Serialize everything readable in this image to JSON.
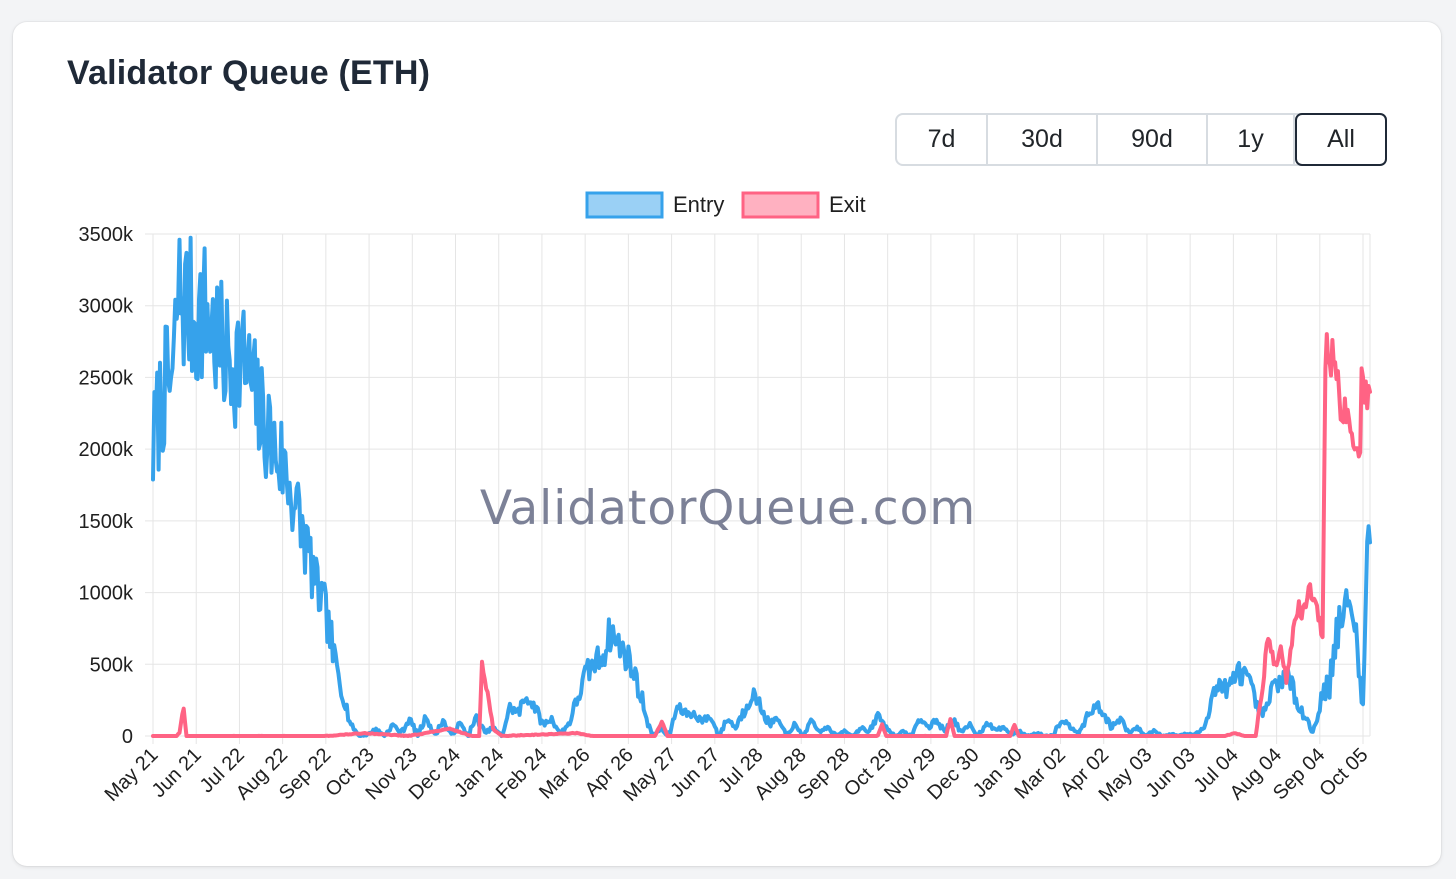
{
  "card": {
    "title": "Validator Queue (ETH)"
  },
  "range_buttons": [
    {
      "label": "7d",
      "active": false
    },
    {
      "label": "30d",
      "active": false
    },
    {
      "label": "90d",
      "active": false
    },
    {
      "label": "1y",
      "active": false
    },
    {
      "label": "All",
      "active": true
    }
  ],
  "watermark": "ValidatorQueue.com",
  "colors": {
    "entry": "#36a2eb",
    "entry_fill": "#9ad0f5",
    "exit": "#ff6384",
    "exit_fill": "#ffb1c1",
    "grid": "#e5e5e5"
  },
  "chart_data": {
    "type": "line",
    "title": "",
    "xlabel": "",
    "ylabel": "",
    "ylim": [
      0,
      3500000
    ],
    "y_ticks": [
      {
        "value": 0,
        "label": "0"
      },
      {
        "value": 500000,
        "label": "500k"
      },
      {
        "value": 1000000,
        "label": "1000k"
      },
      {
        "value": 1500000,
        "label": "1500k"
      },
      {
        "value": 2000000,
        "label": "2000k"
      },
      {
        "value": 2500000,
        "label": "2500k"
      },
      {
        "value": 3000000,
        "label": "3000k"
      },
      {
        "value": 3500000,
        "label": "3500k"
      }
    ],
    "x_range": [
      "2023-05-21",
      "2025-10-10"
    ],
    "x_ticks": [
      {
        "date": "2023-05-21",
        "label": "May 21"
      },
      {
        "date": "2023-06-21",
        "label": "Jun 21"
      },
      {
        "date": "2023-07-22",
        "label": "Jul 22"
      },
      {
        "date": "2023-08-22",
        "label": "Aug 22"
      },
      {
        "date": "2023-09-22",
        "label": "Sep 22"
      },
      {
        "date": "2023-10-23",
        "label": "Oct 23"
      },
      {
        "date": "2023-11-23",
        "label": "Nov 23"
      },
      {
        "date": "2023-12-24",
        "label": "Dec 24"
      },
      {
        "date": "2024-01-24",
        "label": "Jan 24"
      },
      {
        "date": "2024-02-24",
        "label": "Feb 24"
      },
      {
        "date": "2024-03-26",
        "label": "Mar 26"
      },
      {
        "date": "2024-04-26",
        "label": "Apr 26"
      },
      {
        "date": "2024-05-27",
        "label": "May 27"
      },
      {
        "date": "2024-06-27",
        "label": "Jun 27"
      },
      {
        "date": "2024-07-28",
        "label": "Jul 28"
      },
      {
        "date": "2024-08-28",
        "label": "Aug 28"
      },
      {
        "date": "2024-09-28",
        "label": "Sep 28"
      },
      {
        "date": "2024-10-29",
        "label": "Oct 29"
      },
      {
        "date": "2024-11-29",
        "label": "Nov 29"
      },
      {
        "date": "2024-12-30",
        "label": "Dec 30"
      },
      {
        "date": "2025-01-30",
        "label": "Jan 30"
      },
      {
        "date": "2025-03-02",
        "label": "Mar 02"
      },
      {
        "date": "2025-04-02",
        "label": "Apr 02"
      },
      {
        "date": "2025-05-03",
        "label": "May 03"
      },
      {
        "date": "2025-06-03",
        "label": "Jun 03"
      },
      {
        "date": "2025-07-04",
        "label": "Jul 04"
      },
      {
        "date": "2025-08-04",
        "label": "Aug 04"
      },
      {
        "date": "2025-09-04",
        "label": "Sep 04"
      },
      {
        "date": "2025-10-05",
        "label": "Oct 05"
      }
    ],
    "legend": {
      "position": "top"
    },
    "grid": true,
    "series": [
      {
        "name": "Entry",
        "color": "#36a2eb",
        "points": [
          [
            "2023-05-21",
            2000000
          ],
          [
            "2023-05-25",
            2250000
          ],
          [
            "2023-05-29",
            2420000
          ],
          [
            "2023-06-02",
            2450000
          ],
          [
            "2023-06-05",
            2480000
          ],
          [
            "2023-06-07",
            3000000
          ],
          [
            "2023-06-10",
            3100000
          ],
          [
            "2023-06-13",
            3020000
          ],
          [
            "2023-06-17",
            2960000
          ],
          [
            "2023-06-22",
            2900000
          ],
          [
            "2023-06-26",
            2960000
          ],
          [
            "2023-06-30",
            2900000
          ],
          [
            "2023-07-04",
            2800000
          ],
          [
            "2023-07-08",
            2700000
          ],
          [
            "2023-07-12",
            2640000
          ],
          [
            "2023-07-17",
            2620000
          ],
          [
            "2023-07-22",
            2640000
          ],
          [
            "2023-07-26",
            2580000
          ],
          [
            "2023-08-01",
            2400000
          ],
          [
            "2023-08-06",
            2220000
          ],
          [
            "2023-08-11",
            2150000
          ],
          [
            "2023-08-16",
            2000000
          ],
          [
            "2023-08-22",
            1900000
          ],
          [
            "2023-08-28",
            1720000
          ],
          [
            "2023-09-03",
            1500000
          ],
          [
            "2023-09-09",
            1300000
          ],
          [
            "2023-09-15",
            1050000
          ],
          [
            "2023-09-22",
            850000
          ],
          [
            "2023-09-28",
            550000
          ],
          [
            "2023-10-04",
            300000
          ],
          [
            "2023-10-10",
            80000
          ],
          [
            "2023-10-16",
            0
          ],
          [
            "2023-10-22",
            10000
          ],
          [
            "2023-10-28",
            50000
          ],
          [
            "2023-11-03",
            0
          ],
          [
            "2023-11-09",
            80000
          ],
          [
            "2023-11-15",
            20000
          ],
          [
            "2023-11-21",
            120000
          ],
          [
            "2023-11-27",
            0
          ],
          [
            "2023-12-03",
            140000
          ],
          [
            "2023-12-09",
            0
          ],
          [
            "2023-12-15",
            110000
          ],
          [
            "2023-12-21",
            0
          ],
          [
            "2023-12-27",
            90000
          ],
          [
            "2024-01-02",
            0
          ],
          [
            "2024-01-08",
            130000
          ],
          [
            "2024-01-14",
            20000
          ],
          [
            "2024-01-20",
            60000
          ],
          [
            "2024-01-26",
            0
          ],
          [
            "2024-02-01",
            200000
          ],
          [
            "2024-02-07",
            160000
          ],
          [
            "2024-02-13",
            280000
          ],
          [
            "2024-02-19",
            200000
          ],
          [
            "2024-02-25",
            80000
          ],
          [
            "2024-03-02",
            120000
          ],
          [
            "2024-03-08",
            20000
          ],
          [
            "2024-03-14",
            80000
          ],
          [
            "2024-03-20",
            250000
          ],
          [
            "2024-03-26",
            420000
          ],
          [
            "2024-04-01",
            500000
          ],
          [
            "2024-04-07",
            560000
          ],
          [
            "2024-04-13",
            720000
          ],
          [
            "2024-04-19",
            640000
          ],
          [
            "2024-04-25",
            560000
          ],
          [
            "2024-05-01",
            420000
          ],
          [
            "2024-05-07",
            200000
          ],
          [
            "2024-05-13",
            0
          ],
          [
            "2024-05-19",
            50000
          ],
          [
            "2024-05-25",
            0
          ],
          [
            "2024-05-31",
            200000
          ],
          [
            "2024-06-06",
            160000
          ],
          [
            "2024-06-12",
            150000
          ],
          [
            "2024-06-18",
            110000
          ],
          [
            "2024-06-24",
            130000
          ],
          [
            "2024-06-30",
            0
          ],
          [
            "2024-07-06",
            120000
          ],
          [
            "2024-07-12",
            60000
          ],
          [
            "2024-07-18",
            180000
          ],
          [
            "2024-07-24",
            300000
          ],
          [
            "2024-07-30",
            200000
          ],
          [
            "2024-08-05",
            80000
          ],
          [
            "2024-08-11",
            120000
          ],
          [
            "2024-08-17",
            0
          ],
          [
            "2024-08-23",
            80000
          ],
          [
            "2024-08-29",
            0
          ],
          [
            "2024-09-04",
            100000
          ],
          [
            "2024-09-10",
            30000
          ],
          [
            "2024-09-16",
            60000
          ],
          [
            "2024-09-22",
            0
          ],
          [
            "2024-09-28",
            40000
          ],
          [
            "2024-10-04",
            0
          ],
          [
            "2024-10-10",
            60000
          ],
          [
            "2024-10-16",
            20000
          ],
          [
            "2024-10-22",
            150000
          ],
          [
            "2024-10-28",
            60000
          ],
          [
            "2024-11-03",
            0
          ],
          [
            "2024-11-09",
            30000
          ],
          [
            "2024-11-15",
            0
          ],
          [
            "2024-11-21",
            120000
          ],
          [
            "2024-11-27",
            60000
          ],
          [
            "2024-12-03",
            110000
          ],
          [
            "2024-12-09",
            30000
          ],
          [
            "2024-12-15",
            120000
          ],
          [
            "2024-12-21",
            20000
          ],
          [
            "2024-12-27",
            80000
          ],
          [
            "2025-01-02",
            0
          ],
          [
            "2025-01-08",
            100000
          ],
          [
            "2025-01-14",
            40000
          ],
          [
            "2025-01-20",
            60000
          ],
          [
            "2025-01-26",
            10000
          ],
          [
            "2025-02-01",
            30000
          ],
          [
            "2025-02-07",
            0
          ],
          [
            "2025-02-13",
            20000
          ],
          [
            "2025-02-19",
            0
          ],
          [
            "2025-02-25",
            10000
          ],
          [
            "2025-03-03",
            120000
          ],
          [
            "2025-03-09",
            60000
          ],
          [
            "2025-03-15",
            30000
          ],
          [
            "2025-03-21",
            120000
          ],
          [
            "2025-03-27",
            220000
          ],
          [
            "2025-04-02",
            150000
          ],
          [
            "2025-04-08",
            60000
          ],
          [
            "2025-04-14",
            120000
          ],
          [
            "2025-04-20",
            20000
          ],
          [
            "2025-04-26",
            60000
          ],
          [
            "2025-05-02",
            0
          ],
          [
            "2025-05-08",
            40000
          ],
          [
            "2025-05-14",
            0
          ],
          [
            "2025-05-20",
            10000
          ],
          [
            "2025-05-26",
            5000
          ],
          [
            "2025-06-01",
            15000
          ],
          [
            "2025-06-07",
            10000
          ],
          [
            "2025-06-13",
            60000
          ],
          [
            "2025-06-19",
            300000
          ],
          [
            "2025-06-25",
            360000
          ],
          [
            "2025-07-01",
            320000
          ],
          [
            "2025-07-07",
            450000
          ],
          [
            "2025-07-13",
            420000
          ],
          [
            "2025-07-19",
            260000
          ],
          [
            "2025-07-25",
            120000
          ],
          [
            "2025-07-31",
            300000
          ],
          [
            "2025-08-06",
            400000
          ],
          [
            "2025-08-12",
            420000
          ],
          [
            "2025-08-18",
            250000
          ],
          [
            "2025-08-24",
            150000
          ],
          [
            "2025-08-30",
            20000
          ],
          [
            "2025-09-05",
            250000
          ],
          [
            "2025-09-11",
            400000
          ],
          [
            "2025-09-17",
            750000
          ],
          [
            "2025-09-23",
            900000
          ],
          [
            "2025-09-29",
            800000
          ],
          [
            "2025-10-02",
            500000
          ],
          [
            "2025-10-04",
            250000
          ],
          [
            "2025-10-06",
            300000
          ],
          [
            "2025-10-08",
            1400000
          ],
          [
            "2025-10-10",
            1350000
          ]
        ]
      },
      {
        "name": "Exit",
        "color": "#ff6384",
        "points": [
          [
            "2023-05-21",
            0
          ],
          [
            "2023-06-07",
            0
          ],
          [
            "2023-06-09",
            30000
          ],
          [
            "2023-06-12",
            200000
          ],
          [
            "2023-06-14",
            0
          ],
          [
            "2023-09-22",
            0
          ],
          [
            "2023-10-20",
            20000
          ],
          [
            "2023-11-20",
            0
          ],
          [
            "2023-12-20",
            50000
          ],
          [
            "2024-01-05",
            0
          ],
          [
            "2024-01-10",
            0
          ],
          [
            "2024-01-12",
            530000
          ],
          [
            "2024-01-16",
            300000
          ],
          [
            "2024-01-20",
            50000
          ],
          [
            "2024-01-26",
            0
          ],
          [
            "2024-03-20",
            20000
          ],
          [
            "2024-04-01",
            0
          ],
          [
            "2024-05-15",
            0
          ],
          [
            "2024-05-20",
            100000
          ],
          [
            "2024-05-24",
            0
          ],
          [
            "2024-10-22",
            0
          ],
          [
            "2024-10-25",
            80000
          ],
          [
            "2024-10-28",
            0
          ],
          [
            "2024-12-10",
            0
          ],
          [
            "2024-12-13",
            120000
          ],
          [
            "2024-12-16",
            0
          ],
          [
            "2025-01-25",
            0
          ],
          [
            "2025-01-28",
            80000
          ],
          [
            "2025-01-31",
            0
          ],
          [
            "2025-06-28",
            0
          ],
          [
            "2025-07-05",
            20000
          ],
          [
            "2025-07-12",
            0
          ],
          [
            "2025-07-20",
            0
          ],
          [
            "2025-07-25",
            350000
          ],
          [
            "2025-07-29",
            700000
          ],
          [
            "2025-08-03",
            500000
          ],
          [
            "2025-08-07",
            600000
          ],
          [
            "2025-08-11",
            400000
          ],
          [
            "2025-08-15",
            650000
          ],
          [
            "2025-08-19",
            900000
          ],
          [
            "2025-08-23",
            850000
          ],
          [
            "2025-08-27",
            1050000
          ],
          [
            "2025-08-31",
            950000
          ],
          [
            "2025-09-04",
            800000
          ],
          [
            "2025-09-06",
            600000
          ],
          [
            "2025-09-08",
            2650000
          ],
          [
            "2025-09-11",
            2700000
          ],
          [
            "2025-09-15",
            2500000
          ],
          [
            "2025-09-20",
            2300000
          ],
          [
            "2025-09-25",
            2100000
          ],
          [
            "2025-09-30",
            1950000
          ],
          [
            "2025-10-03",
            2000000
          ],
          [
            "2025-10-04",
            2600000
          ],
          [
            "2025-10-06",
            2450000
          ],
          [
            "2025-10-10",
            2400000
          ]
        ]
      }
    ]
  }
}
